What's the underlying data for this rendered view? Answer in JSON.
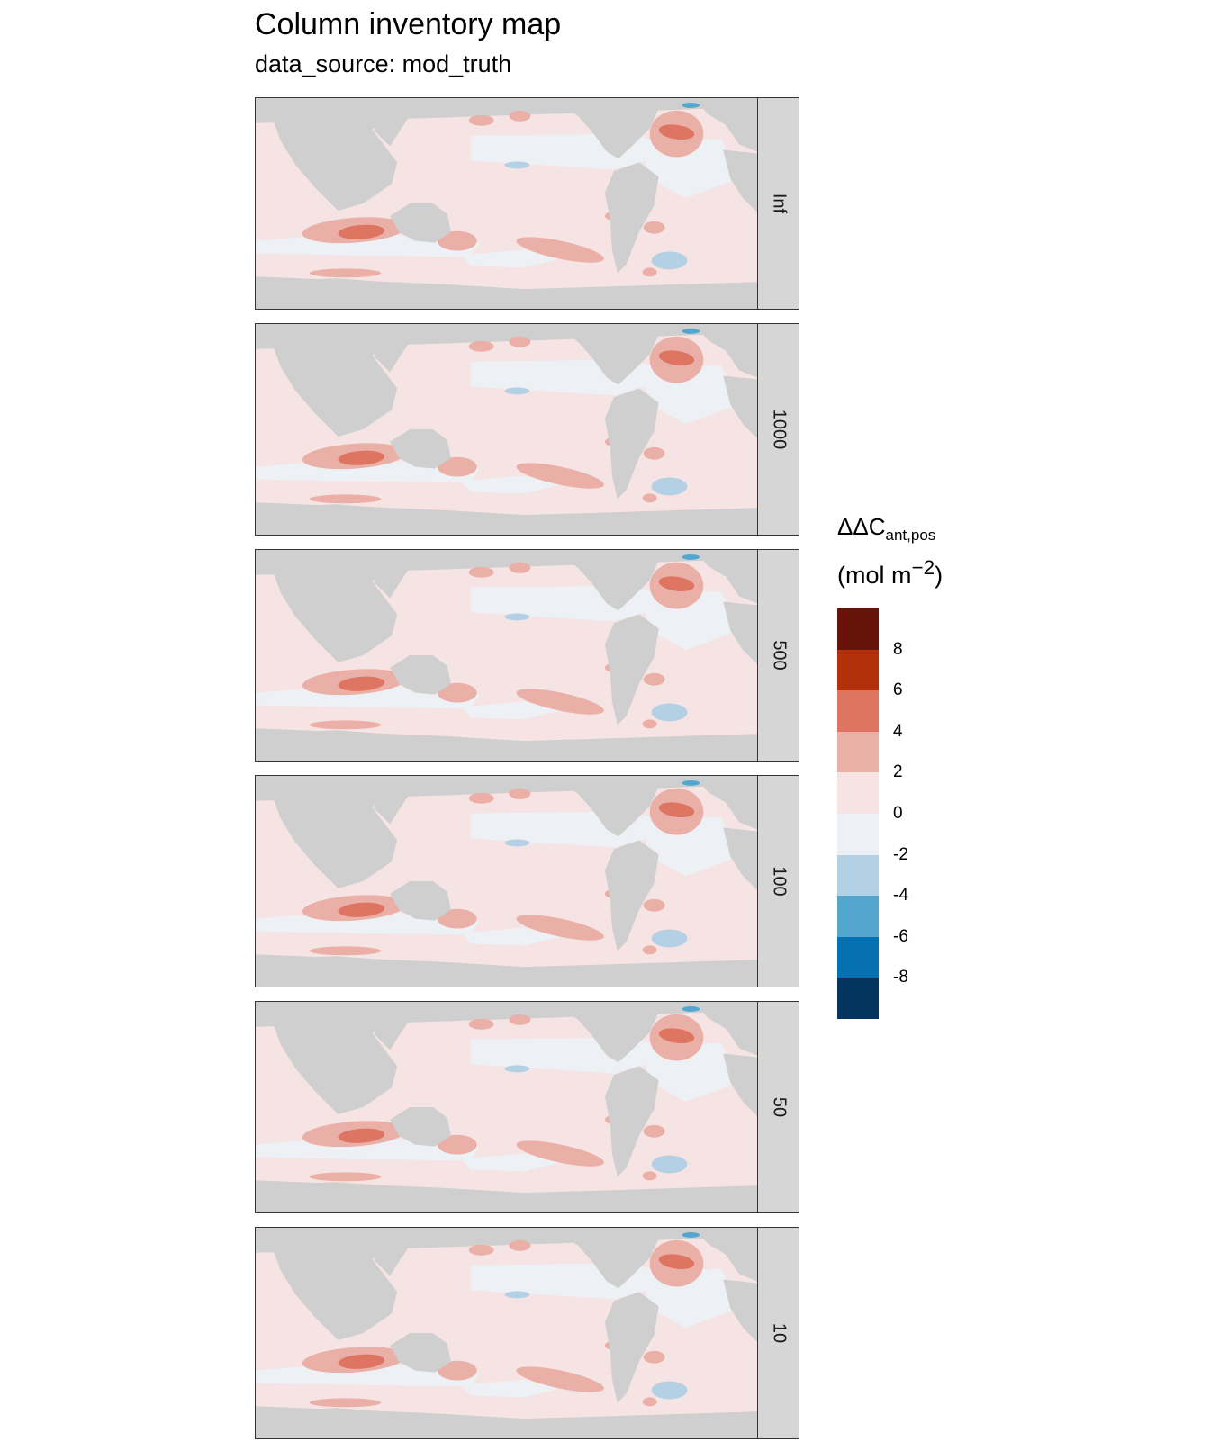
{
  "title": "Column inventory map",
  "subtitle": "data_source: mod_truth",
  "panels": [
    {
      "label": "Inf"
    },
    {
      "label": "1000"
    },
    {
      "label": "500"
    },
    {
      "label": "100"
    },
    {
      "label": "50"
    },
    {
      "label": "10"
    }
  ],
  "legend": {
    "title_main": "ΔΔC",
    "title_sub": "ant,pos",
    "unit_main": "(mol m",
    "unit_sup": "−2",
    "unit_close": ")",
    "ticks": [
      "8",
      "6",
      "4",
      "2",
      "0",
      "-2",
      "-4",
      "-6",
      "-8"
    ],
    "colors": [
      "#67130a",
      "#b2310c",
      "#dd7562",
      "#eab0a7",
      "#f5e4e3",
      "#edf1f5",
      "#b4d0e4",
      "#55a6cf",
      "#0571b0",
      "#053461"
    ]
  },
  "colors": {
    "land": "#cfcfcf",
    "ocean_base": "#f5e4e3",
    "ocean_light_blue": "#edf1f5",
    "positive_mid": "#eab0a7",
    "positive_high": "#dd7562",
    "negative_mid": "#b4d0e4",
    "negative_high": "#55a6cf"
  }
}
